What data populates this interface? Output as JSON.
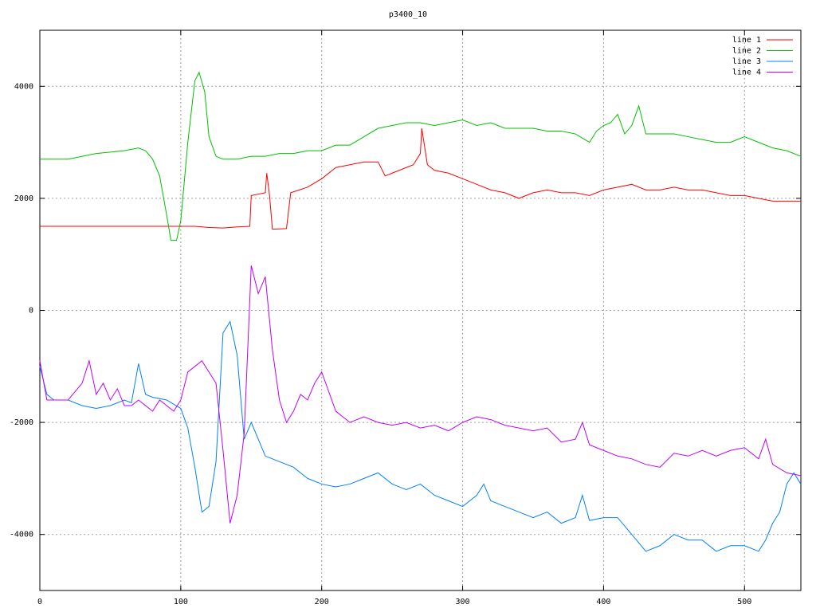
{
  "chart_data": {
    "type": "line",
    "title": "p3400_10",
    "xlim": [
      0,
      540
    ],
    "ylim": [
      -5000,
      5000
    ],
    "xticks": [
      0,
      100,
      200,
      300,
      400,
      500
    ],
    "yticks": [
      -4000,
      -2000,
      0,
      2000,
      4000
    ],
    "grid": true,
    "legend": "top-right",
    "series": [
      {
        "name": "line 1",
        "color": "#ff0000",
        "x": [
          0,
          110,
          120,
          130,
          140,
          149,
          150,
          160,
          161,
          163,
          165,
          175,
          178,
          190,
          200,
          210,
          220,
          230,
          240,
          245,
          250,
          255,
          260,
          265,
          270,
          271,
          275,
          280,
          290,
          300,
          310,
          320,
          330,
          340,
          350,
          360,
          370,
          380,
          390,
          400,
          410,
          420,
          430,
          440,
          450,
          460,
          470,
          480,
          490,
          500,
          510,
          520,
          530,
          540
        ],
        "values": [
          1500,
          1500,
          1480,
          1470,
          1490,
          1500,
          2050,
          2100,
          2450,
          2050,
          1450,
          1460,
          2100,
          2200,
          2350,
          2550,
          2600,
          2650,
          2650,
          2400,
          2450,
          2500,
          2550,
          2600,
          2800,
          3250,
          2600,
          2500,
          2450,
          2350,
          2250,
          2150,
          2100,
          2000,
          2100,
          2150,
          2100,
          2100,
          2050,
          2150,
          2200,
          2250,
          2150,
          2150,
          2200,
          2150,
          2150,
          2100,
          2050,
          2050,
          2000,
          1950,
          1950,
          1950
        ]
      },
      {
        "name": "line 2",
        "color": "#00c000",
        "x": [
          0,
          20,
          40,
          60,
          70,
          75,
          80,
          85,
          90,
          93,
          97,
          100,
          105,
          110,
          113,
          117,
          120,
          125,
          130,
          140,
          150,
          160,
          170,
          180,
          190,
          200,
          210,
          220,
          230,
          240,
          250,
          260,
          270,
          280,
          290,
          300,
          310,
          320,
          330,
          340,
          350,
          360,
          370,
          380,
          390,
          395,
          400,
          405,
          410,
          415,
          420,
          425,
          430,
          440,
          450,
          460,
          470,
          480,
          490,
          500,
          510,
          520,
          530,
          540
        ],
        "values": [
          2700,
          2700,
          2800,
          2850,
          2900,
          2850,
          2700,
          2400,
          1700,
          1250,
          1250,
          1600,
          3000,
          4100,
          4250,
          3900,
          3100,
          2750,
          2700,
          2700,
          2750,
          2750,
          2800,
          2800,
          2850,
          2850,
          2950,
          2950,
          3100,
          3250,
          3300,
          3350,
          3350,
          3300,
          3350,
          3400,
          3300,
          3350,
          3250,
          3250,
          3250,
          3200,
          3200,
          3150,
          3000,
          3200,
          3300,
          3350,
          3500,
          3150,
          3300,
          3650,
          3150,
          3150,
          3150,
          3100,
          3050,
          3000,
          3000,
          3100,
          3000,
          2900,
          2850,
          2750
        ]
      },
      {
        "name": "line 3",
        "color": "#0080ff",
        "x": [
          0,
          5,
          10,
          20,
          30,
          40,
          50,
          60,
          65,
          70,
          75,
          80,
          90,
          100,
          105,
          110,
          115,
          120,
          125,
          130,
          135,
          140,
          145,
          150,
          155,
          160,
          170,
          180,
          190,
          200,
          210,
          220,
          230,
          240,
          250,
          260,
          270,
          280,
          290,
          300,
          310,
          315,
          320,
          330,
          340,
          350,
          360,
          370,
          380,
          385,
          390,
          400,
          410,
          420,
          430,
          440,
          450,
          460,
          470,
          480,
          490,
          500,
          510,
          515,
          520,
          525,
          530,
          535,
          540
        ],
        "values": [
          -1000,
          -1500,
          -1600,
          -1600,
          -1700,
          -1750,
          -1700,
          -1600,
          -1650,
          -950,
          -1500,
          -1550,
          -1600,
          -1750,
          -2100,
          -2800,
          -3600,
          -3500,
          -2700,
          -400,
          -200,
          -800,
          -2300,
          -2000,
          -2300,
          -2600,
          -2700,
          -2800,
          -3000,
          -3100,
          -3150,
          -3100,
          -3000,
          -2900,
          -3100,
          -3200,
          -3100,
          -3300,
          -3400,
          -3500,
          -3300,
          -3100,
          -3400,
          -3500,
          -3600,
          -3700,
          -3600,
          -3800,
          -3700,
          -3300,
          -3750,
          -3700,
          -3700,
          -4000,
          -4300,
          -4200,
          -4000,
          -4100,
          -4100,
          -4300,
          -4200,
          -4200,
          -4300,
          -4100,
          -3800,
          -3600,
          -3100,
          -2900,
          -3100
        ]
      },
      {
        "name": "line 4",
        "color": "#c000ff",
        "x": [
          0,
          5,
          10,
          20,
          30,
          35,
          40,
          45,
          50,
          55,
          60,
          65,
          70,
          80,
          85,
          90,
          95,
          100,
          105,
          110,
          115,
          120,
          125,
          130,
          135,
          140,
          145,
          150,
          155,
          160,
          165,
          170,
          175,
          180,
          185,
          190,
          195,
          200,
          210,
          220,
          230,
          240,
          250,
          260,
          270,
          280,
          290,
          300,
          310,
          320,
          330,
          340,
          350,
          360,
          370,
          380,
          385,
          390,
          400,
          410,
          420,
          430,
          440,
          450,
          460,
          470,
          480,
          490,
          500,
          510,
          515,
          520,
          530,
          540
        ],
        "values": [
          -900,
          -1600,
          -1600,
          -1600,
          -1300,
          -900,
          -1500,
          -1300,
          -1600,
          -1400,
          -1700,
          -1700,
          -1600,
          -1800,
          -1600,
          -1700,
          -1800,
          -1600,
          -1100,
          -1000,
          -900,
          -1100,
          -1300,
          -2500,
          -3800,
          -3300,
          -2200,
          800,
          300,
          600,
          -700,
          -1600,
          -2000,
          -1800,
          -1500,
          -1600,
          -1300,
          -1100,
          -1800,
          -2000,
          -1900,
          -2000,
          -2050,
          -2000,
          -2100,
          -2050,
          -2150,
          -2000,
          -1900,
          -1950,
          -2050,
          -2100,
          -2150,
          -2100,
          -2350,
          -2300,
          -2000,
          -2400,
          -2500,
          -2600,
          -2650,
          -2750,
          -2800,
          -2550,
          -2600,
          -2500,
          -2600,
          -2500,
          -2450,
          -2650,
          -2300,
          -2750,
          -2900,
          -2950
        ]
      }
    ]
  }
}
